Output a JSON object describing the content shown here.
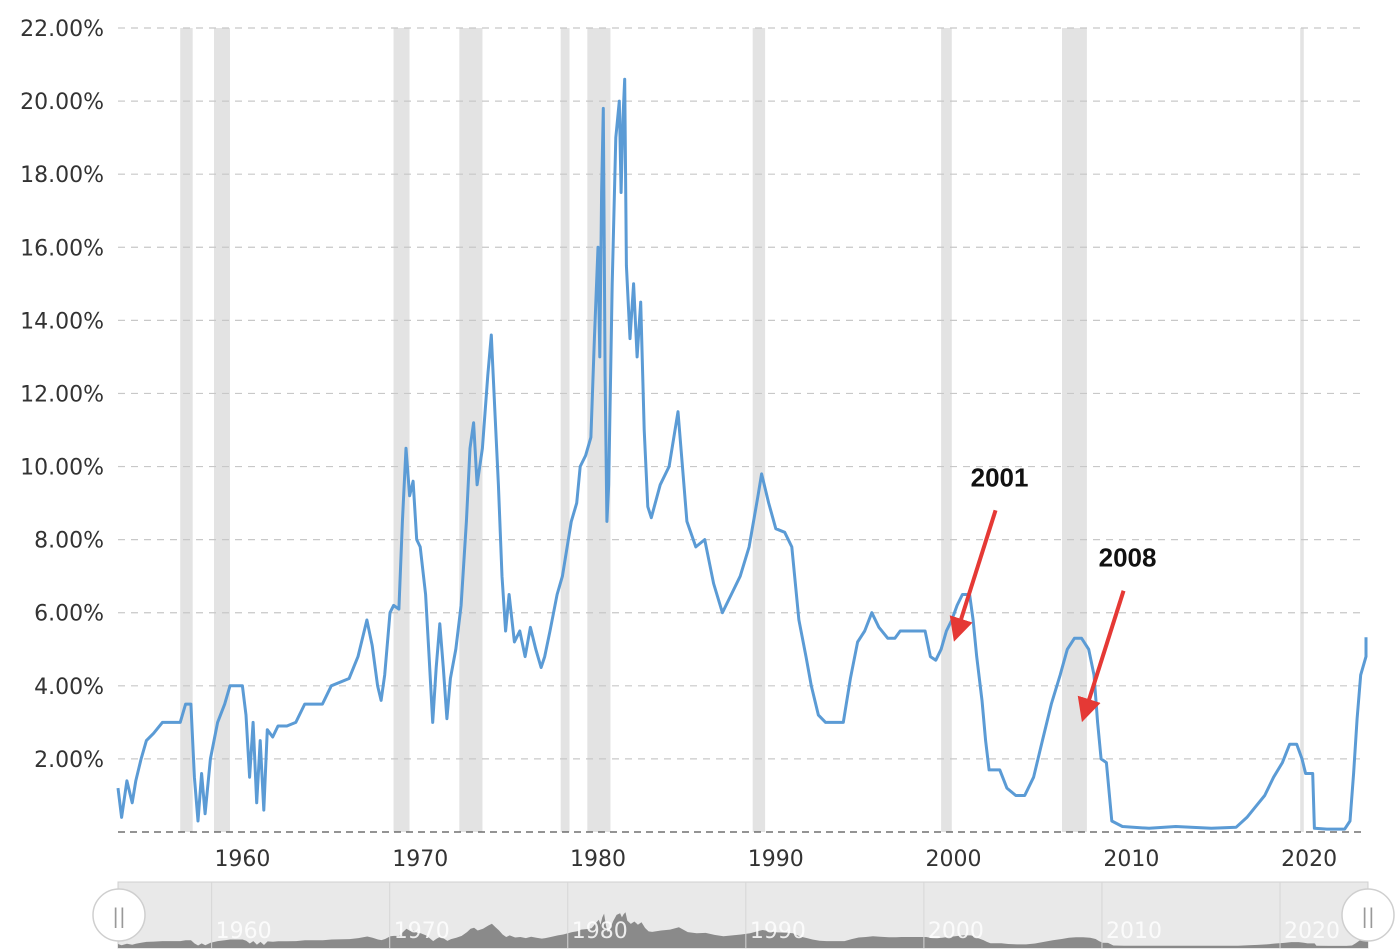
{
  "chart_data": {
    "type": "line",
    "title": "",
    "xlabel": "",
    "ylabel": "",
    "xlim": [
      1953.0,
      2023.2
    ],
    "ylim": [
      0,
      22
    ],
    "y_ticks": [
      "2.00%",
      "4.00%",
      "6.00%",
      "8.00%",
      "10.00%",
      "12.00%",
      "14.00%",
      "16.00%",
      "18.00%",
      "20.00%",
      "22.00%"
    ],
    "y_tick_values": [
      2,
      4,
      6,
      8,
      10,
      12,
      14,
      16,
      18,
      20,
      22
    ],
    "x_ticks": [
      "1960",
      "1970",
      "1980",
      "1990",
      "2000",
      "2010",
      "2020"
    ],
    "x_tick_values": [
      1960,
      1970,
      1980,
      1990,
      2000,
      2010,
      2020
    ],
    "grid": "horizontal dashed",
    "line_color": "#5b9bd5",
    "recession_color": "#e3e3e3",
    "recessions": [
      [
        1956.5,
        1957.2
      ],
      [
        1958.4,
        1959.3
      ],
      [
        1968.5,
        1969.4
      ],
      [
        1972.2,
        1973.5
      ],
      [
        1977.9,
        1978.4
      ],
      [
        1979.4,
        1980.7
      ],
      [
        1988.7,
        1989.4
      ],
      [
        1999.3,
        1999.9
      ],
      [
        2006.1,
        2007.5
      ],
      [
        2019.5,
        2019.7
      ]
    ],
    "series": [
      {
        "values": [
          [
            1953.0,
            1.2
          ],
          [
            1953.2,
            0.4
          ],
          [
            1953.5,
            1.4
          ],
          [
            1953.8,
            0.8
          ],
          [
            1954.0,
            1.4
          ],
          [
            1954.3,
            2.0
          ],
          [
            1954.6,
            2.5
          ],
          [
            1955.0,
            2.7
          ],
          [
            1955.5,
            3.0
          ],
          [
            1956.0,
            3.0
          ],
          [
            1956.5,
            3.0
          ],
          [
            1956.8,
            3.5
          ],
          [
            1957.1,
            3.5
          ],
          [
            1957.3,
            1.5
          ],
          [
            1957.5,
            0.3
          ],
          [
            1957.7,
            1.6
          ],
          [
            1957.9,
            0.5
          ],
          [
            1958.2,
            2.0
          ],
          [
            1958.6,
            3.0
          ],
          [
            1959.0,
            3.5
          ],
          [
            1959.3,
            4.0
          ],
          [
            1960.0,
            4.0
          ],
          [
            1960.2,
            3.2
          ],
          [
            1960.4,
            1.5
          ],
          [
            1960.6,
            3.0
          ],
          [
            1960.8,
            0.8
          ],
          [
            1961.0,
            2.5
          ],
          [
            1961.2,
            0.6
          ],
          [
            1961.4,
            2.8
          ],
          [
            1961.7,
            2.6
          ],
          [
            1962.0,
            2.9
          ],
          [
            1962.5,
            2.9
          ],
          [
            1963.0,
            3.0
          ],
          [
            1963.5,
            3.5
          ],
          [
            1964.5,
            3.5
          ],
          [
            1965.0,
            4.0
          ],
          [
            1966.0,
            4.2
          ],
          [
            1966.5,
            4.8
          ],
          [
            1967.0,
            5.8
          ],
          [
            1967.3,
            5.1
          ],
          [
            1967.6,
            4.0
          ],
          [
            1967.8,
            3.6
          ],
          [
            1968.0,
            4.3
          ],
          [
            1968.3,
            6.0
          ],
          [
            1968.5,
            6.2
          ],
          [
            1968.8,
            6.1
          ],
          [
            1969.0,
            8.5
          ],
          [
            1969.2,
            10.5
          ],
          [
            1969.4,
            9.2
          ],
          [
            1969.6,
            9.6
          ],
          [
            1969.8,
            8.0
          ],
          [
            1970.0,
            7.8
          ],
          [
            1970.3,
            6.5
          ],
          [
            1970.5,
            4.8
          ],
          [
            1970.7,
            3.0
          ],
          [
            1970.9,
            4.5
          ],
          [
            1971.1,
            5.7
          ],
          [
            1971.3,
            4.5
          ],
          [
            1971.5,
            3.1
          ],
          [
            1971.7,
            4.2
          ],
          [
            1972.0,
            5.0
          ],
          [
            1972.3,
            6.2
          ],
          [
            1972.6,
            8.5
          ],
          [
            1972.8,
            10.5
          ],
          [
            1973.0,
            11.2
          ],
          [
            1973.2,
            9.5
          ],
          [
            1973.5,
            10.5
          ],
          [
            1973.8,
            12.5
          ],
          [
            1974.0,
            13.6
          ],
          [
            1974.2,
            11.5
          ],
          [
            1974.4,
            9.5
          ],
          [
            1974.6,
            7.0
          ],
          [
            1974.8,
            5.5
          ],
          [
            1975.0,
            6.5
          ],
          [
            1975.3,
            5.2
          ],
          [
            1975.6,
            5.5
          ],
          [
            1975.9,
            4.8
          ],
          [
            1976.2,
            5.6
          ],
          [
            1976.5,
            5.0
          ],
          [
            1976.8,
            4.5
          ],
          [
            1977.0,
            4.8
          ],
          [
            1977.3,
            5.5
          ],
          [
            1977.7,
            6.5
          ],
          [
            1978.0,
            7.0
          ],
          [
            1978.5,
            8.5
          ],
          [
            1978.8,
            9.0
          ],
          [
            1979.0,
            10.0
          ],
          [
            1979.3,
            10.3
          ],
          [
            1979.6,
            10.8
          ],
          [
            1979.8,
            13.5
          ],
          [
            1980.0,
            16.0
          ],
          [
            1980.1,
            13.0
          ],
          [
            1980.2,
            17.5
          ],
          [
            1980.3,
            19.8
          ],
          [
            1980.4,
            12.5
          ],
          [
            1980.5,
            8.5
          ],
          [
            1980.6,
            9.5
          ],
          [
            1980.8,
            15.0
          ],
          [
            1981.0,
            19.0
          ],
          [
            1981.2,
            20.0
          ],
          [
            1981.3,
            17.5
          ],
          [
            1981.4,
            19.5
          ],
          [
            1981.5,
            20.6
          ],
          [
            1981.6,
            15.5
          ],
          [
            1981.8,
            13.5
          ],
          [
            1982.0,
            15.0
          ],
          [
            1982.2,
            13.0
          ],
          [
            1982.4,
            14.5
          ],
          [
            1982.6,
            11.0
          ],
          [
            1982.8,
            8.9
          ],
          [
            1983.0,
            8.6
          ],
          [
            1983.5,
            9.5
          ],
          [
            1984.0,
            10.0
          ],
          [
            1984.5,
            11.5
          ],
          [
            1985.0,
            8.5
          ],
          [
            1985.5,
            7.8
          ],
          [
            1986.0,
            8.0
          ],
          [
            1986.5,
            6.8
          ],
          [
            1987.0,
            6.0
          ],
          [
            1987.5,
            6.5
          ],
          [
            1988.0,
            7.0
          ],
          [
            1988.5,
            7.8
          ],
          [
            1989.0,
            9.2
          ],
          [
            1989.2,
            9.8
          ],
          [
            1989.6,
            9.0
          ],
          [
            1990.0,
            8.3
          ],
          [
            1990.5,
            8.2
          ],
          [
            1990.9,
            7.8
          ],
          [
            1991.3,
            5.8
          ],
          [
            1991.7,
            4.8
          ],
          [
            1992.0,
            4.0
          ],
          [
            1992.4,
            3.2
          ],
          [
            1992.8,
            3.0
          ],
          [
            1993.3,
            3.0
          ],
          [
            1993.8,
            3.0
          ],
          [
            1994.2,
            4.2
          ],
          [
            1994.6,
            5.2
          ],
          [
            1995.0,
            5.5
          ],
          [
            1995.4,
            6.0
          ],
          [
            1995.8,
            5.6
          ],
          [
            1996.3,
            5.3
          ],
          [
            1996.7,
            5.3
          ],
          [
            1997.0,
            5.5
          ],
          [
            1997.5,
            5.5
          ],
          [
            1998.0,
            5.5
          ],
          [
            1998.4,
            5.5
          ],
          [
            1998.7,
            4.8
          ],
          [
            1999.0,
            4.7
          ],
          [
            1999.3,
            5.0
          ],
          [
            1999.6,
            5.5
          ],
          [
            1999.9,
            5.8
          ],
          [
            2000.2,
            6.2
          ],
          [
            2000.5,
            6.5
          ],
          [
            2000.9,
            6.5
          ],
          [
            2001.1,
            5.8
          ],
          [
            2001.3,
            4.8
          ],
          [
            2001.6,
            3.6
          ],
          [
            2001.8,
            2.5
          ],
          [
            2002.0,
            1.7
          ],
          [
            2002.6,
            1.7
          ],
          [
            2003.0,
            1.2
          ],
          [
            2003.5,
            1.0
          ],
          [
            2004.0,
            1.0
          ],
          [
            2004.5,
            1.5
          ],
          [
            2005.0,
            2.5
          ],
          [
            2005.5,
            3.5
          ],
          [
            2006.0,
            4.3
          ],
          [
            2006.4,
            5.0
          ],
          [
            2006.8,
            5.3
          ],
          [
            2007.2,
            5.3
          ],
          [
            2007.6,
            5.0
          ],
          [
            2007.9,
            4.3
          ],
          [
            2008.1,
            3.0
          ],
          [
            2008.3,
            2.0
          ],
          [
            2008.6,
            1.9
          ],
          [
            2008.9,
            0.3
          ],
          [
            2009.5,
            0.15
          ],
          [
            2011.0,
            0.1
          ],
          [
            2012.5,
            0.15
          ],
          [
            2014.5,
            0.1
          ],
          [
            2015.9,
            0.13
          ],
          [
            2016.5,
            0.4
          ],
          [
            2017.0,
            0.7
          ],
          [
            2017.5,
            1.0
          ],
          [
            2018.0,
            1.5
          ],
          [
            2018.5,
            1.9
          ],
          [
            2018.9,
            2.4
          ],
          [
            2019.3,
            2.4
          ],
          [
            2019.6,
            2.0
          ],
          [
            2019.8,
            1.6
          ],
          [
            2020.2,
            1.6
          ],
          [
            2020.3,
            0.1
          ],
          [
            2021.0,
            0.08
          ],
          [
            2022.0,
            0.08
          ],
          [
            2022.3,
            0.3
          ],
          [
            2022.5,
            1.6
          ],
          [
            2022.7,
            3.1
          ],
          [
            2022.9,
            4.3
          ],
          [
            2023.2,
            4.8
          ],
          [
            2023.5,
            5.1
          ],
          [
            2023.8,
            5.33
          ],
          [
            2024.7,
            5.33
          ]
        ]
      }
    ],
    "annotations": [
      {
        "label": "2001",
        "x": 2000.0,
        "y": 5.3
      },
      {
        "label": "2008",
        "x": 2007.2,
        "y": 3.1
      }
    ]
  },
  "navigator": {
    "ticks": [
      "1960",
      "1970",
      "1980",
      "1990",
      "2000",
      "2010",
      "2020"
    ],
    "left_handle_label": "||",
    "right_handle_label": "||"
  }
}
